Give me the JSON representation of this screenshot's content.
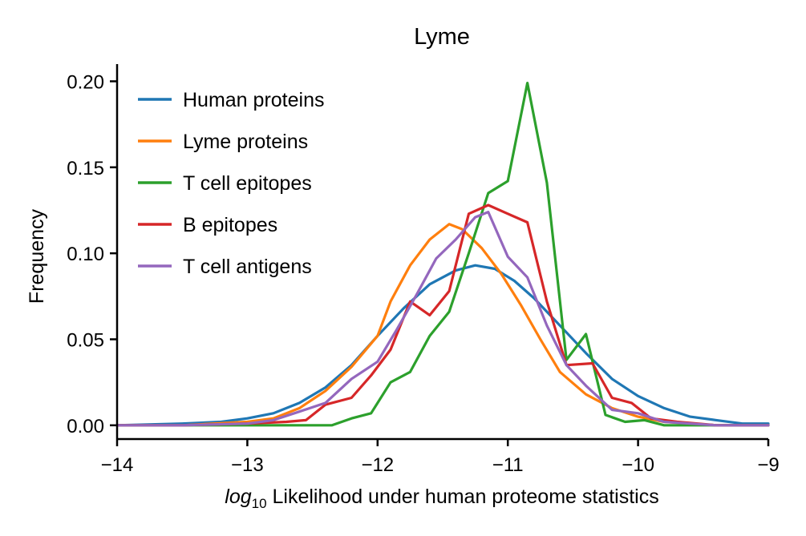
{
  "chart_data": {
    "type": "line",
    "title": "Lyme",
    "xlabel_prefix": "log",
    "xlabel_subscript": "10",
    "xlabel_suffix": " Likelihood under human proteome statistics",
    "ylabel": "Frequency",
    "xlim": [
      -14,
      -9
    ],
    "ylim": [
      -0.008,
      0.21
    ],
    "xticks": [
      -14,
      -13,
      -12,
      -11,
      -10,
      -9
    ],
    "xtick_labels": [
      "−14",
      "−13",
      "−12",
      "−11",
      "−10",
      "−9"
    ],
    "yticks": [
      0.0,
      0.05,
      0.1,
      0.15,
      0.2
    ],
    "ytick_labels": [
      "0.00",
      "0.05",
      "0.10",
      "0.15",
      "0.20"
    ],
    "grid": false,
    "legend_position": "top-left",
    "series": [
      {
        "name": "Human proteins",
        "color": "#1f77b4",
        "x": [
          -14.0,
          -13.5,
          -13.2,
          -13.0,
          -12.8,
          -12.6,
          -12.4,
          -12.2,
          -12.0,
          -11.8,
          -11.6,
          -11.4,
          -11.25,
          -11.1,
          -10.95,
          -10.8,
          -10.6,
          -10.4,
          -10.2,
          -10.0,
          -9.8,
          -9.6,
          -9.4,
          -9.2,
          -9.0
        ],
        "y": [
          0.0,
          0.001,
          0.002,
          0.004,
          0.007,
          0.013,
          0.022,
          0.035,
          0.052,
          0.068,
          0.082,
          0.09,
          0.093,
          0.091,
          0.084,
          0.074,
          0.058,
          0.042,
          0.027,
          0.017,
          0.01,
          0.005,
          0.003,
          0.001,
          0.001
        ]
      },
      {
        "name": "Lyme proteins",
        "color": "#ff7f0e",
        "x": [
          -14.0,
          -13.5,
          -13.0,
          -12.8,
          -12.6,
          -12.4,
          -12.2,
          -12.0,
          -11.9,
          -11.75,
          -11.6,
          -11.45,
          -11.35,
          -11.2,
          -11.05,
          -10.9,
          -10.75,
          -10.6,
          -10.4,
          -10.2,
          -10.0,
          -9.8,
          -9.6,
          -9.4,
          -9.0
        ],
        "y": [
          0.0,
          0.0,
          0.002,
          0.004,
          0.01,
          0.02,
          0.034,
          0.052,
          0.072,
          0.093,
          0.108,
          0.117,
          0.114,
          0.103,
          0.088,
          0.07,
          0.05,
          0.031,
          0.018,
          0.01,
          0.005,
          0.002,
          0.001,
          0.0,
          0.0
        ]
      },
      {
        "name": "T cell epitopes",
        "color": "#2ca02c",
        "x": [
          -14.0,
          -13.5,
          -13.0,
          -12.5,
          -12.35,
          -12.2,
          -12.05,
          -11.9,
          -11.75,
          -11.6,
          -11.45,
          -11.3,
          -11.15,
          -11.0,
          -10.85,
          -10.7,
          -10.55,
          -10.4,
          -10.25,
          -10.1,
          -9.95,
          -9.8,
          -9.6,
          -9.3,
          -9.0
        ],
        "y": [
          0.0,
          0.0,
          0.0,
          0.0,
          0.0,
          0.004,
          0.007,
          0.025,
          0.031,
          0.052,
          0.066,
          0.1,
          0.135,
          0.142,
          0.199,
          0.141,
          0.038,
          0.053,
          0.006,
          0.002,
          0.003,
          0.0,
          0.0,
          0.0,
          0.0
        ]
      },
      {
        "name": "B epitopes",
        "color": "#d62728",
        "x": [
          -14.0,
          -13.5,
          -13.0,
          -12.7,
          -12.55,
          -12.4,
          -12.2,
          -12.05,
          -11.9,
          -11.75,
          -11.6,
          -11.45,
          -11.3,
          -11.15,
          -11.0,
          -10.85,
          -10.7,
          -10.55,
          -10.35,
          -10.2,
          -10.05,
          -9.9,
          -9.7,
          -9.4,
          -9.0
        ],
        "y": [
          0.0,
          0.0,
          0.001,
          0.002,
          0.003,
          0.012,
          0.016,
          0.029,
          0.044,
          0.072,
          0.064,
          0.078,
          0.123,
          0.128,
          0.123,
          0.118,
          0.072,
          0.035,
          0.036,
          0.016,
          0.013,
          0.004,
          0.002,
          0.0,
          0.0
        ]
      },
      {
        "name": "T cell antigens",
        "color": "#9467bd",
        "x": [
          -14.0,
          -13.5,
          -13.0,
          -12.8,
          -12.6,
          -12.4,
          -12.2,
          -12.0,
          -11.85,
          -11.7,
          -11.55,
          -11.4,
          -11.25,
          -11.15,
          -11.0,
          -10.85,
          -10.7,
          -10.55,
          -10.4,
          -10.2,
          -10.0,
          -9.8,
          -9.6,
          -9.4,
          -9.0
        ],
        "y": [
          0.0,
          0.0,
          0.001,
          0.003,
          0.008,
          0.013,
          0.027,
          0.037,
          0.056,
          0.076,
          0.097,
          0.108,
          0.121,
          0.124,
          0.098,
          0.086,
          0.058,
          0.035,
          0.023,
          0.009,
          0.007,
          0.002,
          0.001,
          0.0,
          0.0
        ]
      }
    ]
  }
}
